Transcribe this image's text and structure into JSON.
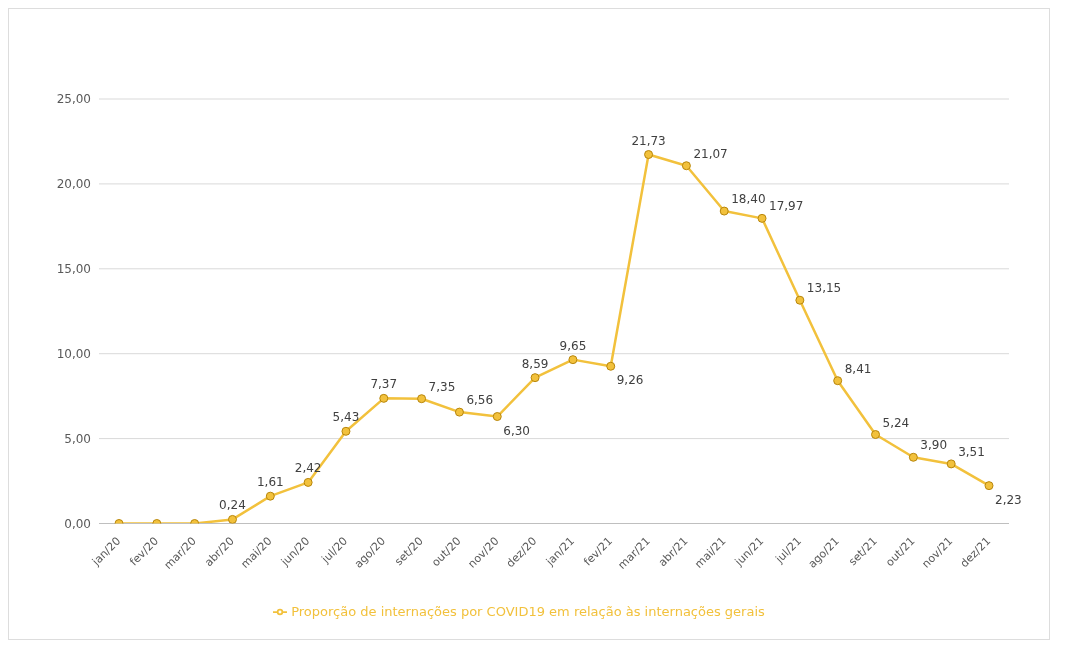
{
  "chart_data": {
    "type": "line",
    "categories": [
      "jan/20",
      "fev/20",
      "mar/20",
      "abr/20",
      "mai/20",
      "jun/20",
      "jul/20",
      "ago/20",
      "set/20",
      "out/20",
      "nov/20",
      "dez/20",
      "jan/21",
      "fev/21",
      "mar/21",
      "abr/21",
      "mai/21",
      "jun/21",
      "jul/21",
      "ago/21",
      "set/21",
      "out/21",
      "nov/21",
      "dez/21"
    ],
    "series": [
      {
        "name": "Proporção de internações por COVID19 em relação às internações gerais",
        "color": "#f2c13c",
        "values": [
          0,
          0,
          0,
          0.24,
          1.61,
          2.42,
          5.43,
          7.37,
          7.35,
          6.56,
          6.3,
          8.59,
          9.65,
          9.26,
          21.73,
          21.07,
          18.4,
          17.97,
          13.15,
          8.41,
          5.24,
          3.9,
          3.51,
          2.23
        ],
        "value_labels": [
          null,
          null,
          null,
          "0,24",
          "1,61",
          "2,42",
          "5,43",
          "7,37",
          "7,35",
          "6,56",
          "6,30",
          "8,59",
          "9,65",
          "9,26",
          "21,73",
          "21,07",
          "18,40",
          "17,97",
          "13,15",
          "8,41",
          "5,24",
          "3,90",
          "3,51",
          "2,23"
        ]
      }
    ],
    "ylim": [
      0,
      25
    ],
    "yticks": [
      {
        "value": 0,
        "label": "0,00"
      },
      {
        "value": 5,
        "label": "5,00"
      },
      {
        "value": 10,
        "label": "10,00"
      },
      {
        "value": 15,
        "label": "15,00"
      },
      {
        "value": 20,
        "label": "20,00"
      },
      {
        "value": 25,
        "label": "25,00"
      }
    ],
    "grid": "y",
    "legend": "bottom",
    "marker": "circle",
    "line_style": "solid"
  }
}
